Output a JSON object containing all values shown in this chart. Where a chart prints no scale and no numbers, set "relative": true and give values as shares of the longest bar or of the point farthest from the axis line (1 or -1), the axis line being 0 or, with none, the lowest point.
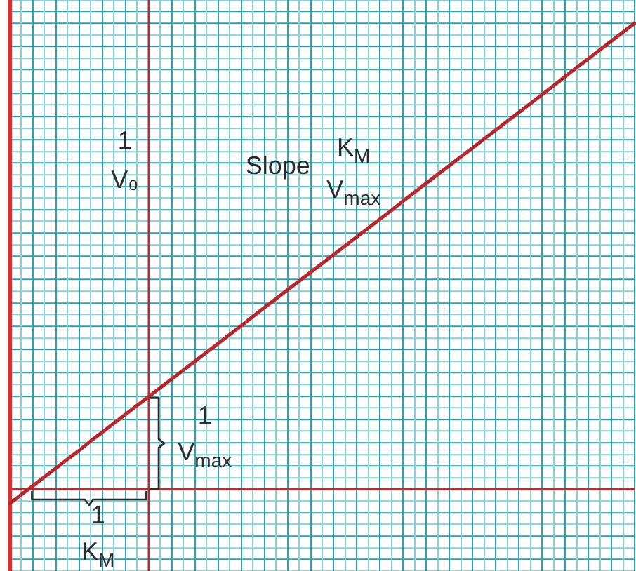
{
  "chart_data": {
    "type": "line",
    "relative": true,
    "color": "#b8262c",
    "grid": true,
    "tick_labels": false,
    "ref_lines": [
      {
        "axis": "y",
        "value": 0,
        "color": "#a8343a"
      }
    ],
    "annotations": [
      "1\nV₀",
      "Slope",
      "K$_{M}$\nV$_{max}$",
      "1\nV$_{max}$",
      "1\nK$_{M}$"
    ],
    "categories": [
      null,
      null,
      null,
      null,
      null,
      null,
      null,
      null,
      null,
      null,
      null,
      null,
      null,
      null,
      null,
      null,
      null,
      null,
      null,
      null,
      null,
      null,
      null,
      null,
      null,
      null,
      null,
      null,
      null,
      null,
      null,
      null,
      null,
      null,
      null,
      null,
      null,
      null,
      null,
      null,
      null,
      null,
      null,
      null,
      null,
      null,
      null,
      null,
      null,
      null,
      null,
      null,
      null,
      null,
      null
    ],
    "values": [
      -0.03,
      -0.011,
      0.008,
      0.027,
      0.046,
      0.065,
      0.084,
      0.104,
      0.123,
      0.142,
      0.161,
      0.18,
      0.199,
      0.218,
      0.237,
      0.256,
      0.275,
      0.294,
      0.313,
      0.332,
      0.351,
      0.371,
      0.39,
      0.409,
      0.428,
      0.447,
      0.466,
      0.485,
      0.504,
      0.523,
      0.542,
      0.561,
      0.58,
      0.599,
      0.619,
      0.638,
      0.657,
      0.676,
      0.695,
      0.714,
      0.733,
      0.752,
      0.771,
      0.79,
      0.809,
      0.828,
      0.847,
      0.866,
      0.886,
      0.905,
      0.924,
      0.943,
      0.962,
      0.981,
      1.0
    ]
  }
}
